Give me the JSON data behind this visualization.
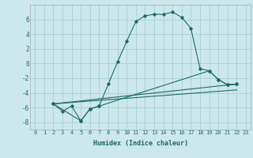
{
  "xlabel": "Humidex (Indice chaleur)",
  "xlim": [
    -0.5,
    23.5
  ],
  "ylim": [
    -9,
    8
  ],
  "xticks": [
    0,
    1,
    2,
    3,
    4,
    5,
    6,
    7,
    8,
    9,
    10,
    11,
    12,
    13,
    14,
    15,
    16,
    17,
    18,
    19,
    20,
    21,
    22,
    23
  ],
  "yticks": [
    -8,
    -6,
    -4,
    -2,
    0,
    2,
    4,
    6
  ],
  "background_color": "#cce8ea",
  "grid_color": "#aacfd2",
  "line_color": "#1a6b6b",
  "line1_x": [
    2,
    3,
    4,
    5,
    6,
    7,
    8,
    9,
    10,
    11,
    12,
    13,
    14,
    15,
    16,
    17,
    18,
    19,
    20,
    21,
    22
  ],
  "line1_y": [
    -5.5,
    -6.5,
    -5.8,
    -7.8,
    -6.2,
    -5.8,
    -2.8,
    0.2,
    3.0,
    5.7,
    6.5,
    6.7,
    6.7,
    7.0,
    6.3,
    4.8,
    -0.7,
    -1.0,
    -2.2,
    -2.9,
    -2.8
  ],
  "line2_x": [
    2,
    5,
    6,
    7,
    19,
    20,
    21,
    22
  ],
  "line2_y": [
    -5.5,
    -7.8,
    -6.2,
    -5.8,
    -1.0,
    -2.2,
    -2.9,
    -2.8
  ],
  "line3_x": [
    2,
    22
  ],
  "line3_y": [
    -5.5,
    -2.8
  ],
  "line4_x": [
    2,
    22
  ],
  "line4_y": [
    -5.5,
    -3.6
  ]
}
